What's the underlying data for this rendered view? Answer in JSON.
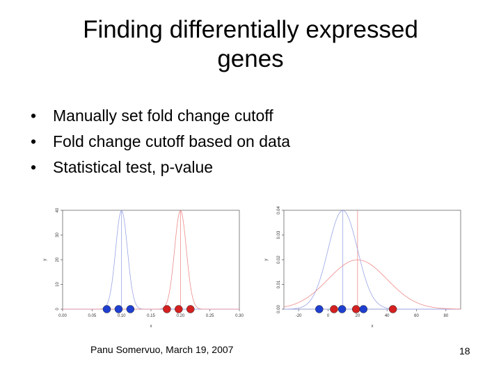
{
  "slide": {
    "title_line1": "Finding differentially expressed",
    "title_line2": "genes",
    "bullets": [
      "Manually set fold change cutoff",
      "Fold change cutoff based on data",
      "Statistical test, p-value"
    ],
    "footer": "Panu Somervuo, March 19, 2007",
    "page_number": "18"
  },
  "colors": {
    "blue": "#1f3fd0",
    "red": "#d42020",
    "curve_blue": "#9aa4e6",
    "curve_red": "#ee8a8a",
    "axis": "#333333"
  },
  "chart_data": [
    {
      "type": "line",
      "xlabel": "x",
      "ylabel": "y",
      "xlim": [
        0.0,
        0.3
      ],
      "ylim": [
        0,
        40
      ],
      "x_ticks": [
        "0.00",
        "0.05",
        "0.10",
        "0.15",
        "0.20",
        "0.25",
        "0.30"
      ],
      "y_ticks": [
        "0",
        "10",
        "20",
        "30",
        "40"
      ],
      "curves": [
        {
          "color": "blue",
          "mean": 0.1,
          "sd": 0.01
        },
        {
          "color": "red",
          "mean": 0.2,
          "sd": 0.01
        }
      ],
      "vlines": [
        {
          "x": 0.1,
          "color": "blue"
        },
        {
          "x": 0.2,
          "color": "red"
        }
      ],
      "points": [
        {
          "x": 0.075,
          "color": "blue"
        },
        {
          "x": 0.095,
          "color": "blue"
        },
        {
          "x": 0.115,
          "color": "blue"
        },
        {
          "x": 0.177,
          "color": "red"
        },
        {
          "x": 0.197,
          "color": "red"
        },
        {
          "x": 0.217,
          "color": "red"
        }
      ]
    },
    {
      "type": "line",
      "xlabel": "x",
      "ylabel": "y",
      "xlim": [
        -30,
        90
      ],
      "ylim": [
        0,
        0.04
      ],
      "x_ticks": [
        "-20",
        "0",
        "20",
        "40",
        "60",
        "80"
      ],
      "y_ticks": [
        "0.00",
        "0.01",
        "0.02",
        "0.03",
        "0.04"
      ],
      "curves": [
        {
          "color": "blue",
          "mean": 10,
          "sd": 10
        },
        {
          "color": "red",
          "mean": 20,
          "sd": 20
        }
      ],
      "vlines": [
        {
          "x": 10,
          "color": "blue"
        },
        {
          "x": 20,
          "color": "red"
        }
      ],
      "points": [
        {
          "x": -6,
          "color": "blue"
        },
        {
          "x": 4,
          "color": "red"
        },
        {
          "x": 9.5,
          "color": "blue"
        },
        {
          "x": 19,
          "color": "red"
        },
        {
          "x": 24,
          "color": "blue"
        },
        {
          "x": 44,
          "color": "red"
        }
      ]
    }
  ]
}
